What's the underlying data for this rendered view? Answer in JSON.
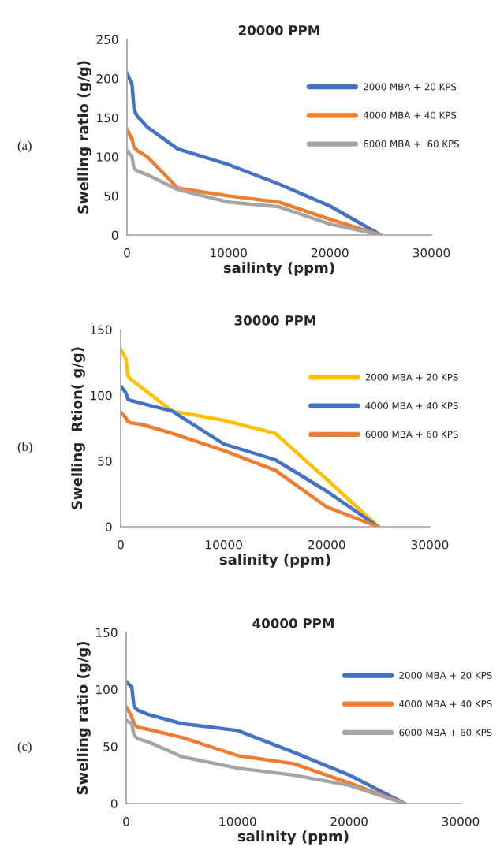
{
  "chart_data": [
    {
      "type": "line",
      "title": "20000 PPM",
      "xlabel": "sailinty (ppm)",
      "ylabel": "Swelling ratio (g/g)",
      "annotations": [
        "(a)"
      ],
      "x": [
        0,
        500,
        700,
        1000,
        2000,
        5000,
        10000,
        15000,
        20000,
        25000
      ],
      "series": [
        {
          "name": "2000 MBA + 20 KPS",
          "color": "#4472c4",
          "values": [
            207,
            192,
            160,
            152,
            138,
            110,
            90,
            65,
            37,
            0
          ]
        },
        {
          "name": "4000 MBA + 40 KPS",
          "color": "#ed7d31",
          "values": [
            135,
            122,
            112,
            108,
            100,
            60,
            50,
            42,
            20,
            0
          ]
        },
        {
          "name": "6000 MBA +  60 KPS",
          "color": "#a5a5a5",
          "values": [
            108,
            100,
            85,
            82,
            77,
            58,
            42,
            36,
            14,
            0
          ]
        }
      ],
      "xlim": [
        0,
        30000
      ],
      "xticks": [
        0,
        10000,
        20000,
        30000
      ],
      "ylim": [
        0,
        250
      ],
      "yticks": [
        0,
        50,
        100,
        150,
        200,
        250
      ],
      "grid": false,
      "legend": "top right"
    },
    {
      "type": "line",
      "title": "30000 PPM",
      "xlabel": "salinity (ppm)",
      "ylabel": "Swelling  Rtion( g/g)",
      "annotations": [
        "(b)"
      ],
      "x": [
        0,
        500,
        700,
        1000,
        2000,
        5000,
        10000,
        15000,
        20000,
        25000
      ],
      "series": [
        {
          "name": "2000 MBA + 20 KPS",
          "color": "#ffc000",
          "values": [
            135,
            128,
            115,
            112,
            106,
            88,
            81,
            71,
            36,
            0
          ]
        },
        {
          "name": "4000 MBA + 40 KPS",
          "color": "#4472c4",
          "values": [
            107,
            102,
            97,
            96,
            94,
            88,
            63,
            51,
            27,
            0
          ]
        },
        {
          "name": "6000 MBA + 60 KPS",
          "color": "#ed7d31",
          "values": [
            87,
            83,
            80,
            79,
            78,
            71,
            58,
            43,
            15,
            0
          ]
        }
      ],
      "xlim": [
        0,
        30000
      ],
      "xticks": [
        0,
        10000,
        20000,
        30000
      ],
      "ylim": [
        0,
        150
      ],
      "yticks": [
        0,
        50,
        100,
        150
      ],
      "grid": false,
      "legend": "top right"
    },
    {
      "type": "line",
      "title": "40000 PPM",
      "xlabel": "salinity (ppm)",
      "ylabel": "Swelling ratio (g/g)",
      "annotations": [
        "(c)"
      ],
      "x": [
        0,
        500,
        700,
        1000,
        2000,
        5000,
        10000,
        15000,
        20000,
        25000
      ],
      "series": [
        {
          "name": "2000 MBA + 20 KPS",
          "color": "#4472c4",
          "values": [
            107,
            102,
            85,
            82,
            78,
            70,
            64,
            45,
            25,
            0
          ]
        },
        {
          "name": "4000 MBA + 40 KPS",
          "color": "#ed7d31",
          "values": [
            85,
            76,
            70,
            67,
            65,
            58,
            42,
            35,
            18,
            0
          ]
        },
        {
          "name": "6000 MBA + 60 KPS",
          "color": "#a5a5a5",
          "values": [
            73,
            70,
            60,
            57,
            54,
            41,
            31,
            25,
            16,
            0
          ]
        }
      ],
      "xlim": [
        0,
        30000
      ],
      "xticks": [
        0,
        10000,
        20000,
        30000
      ],
      "ylim": [
        0,
        150
      ],
      "yticks": [
        0,
        50,
        100,
        150
      ],
      "grid": false,
      "legend": "top right"
    }
  ]
}
